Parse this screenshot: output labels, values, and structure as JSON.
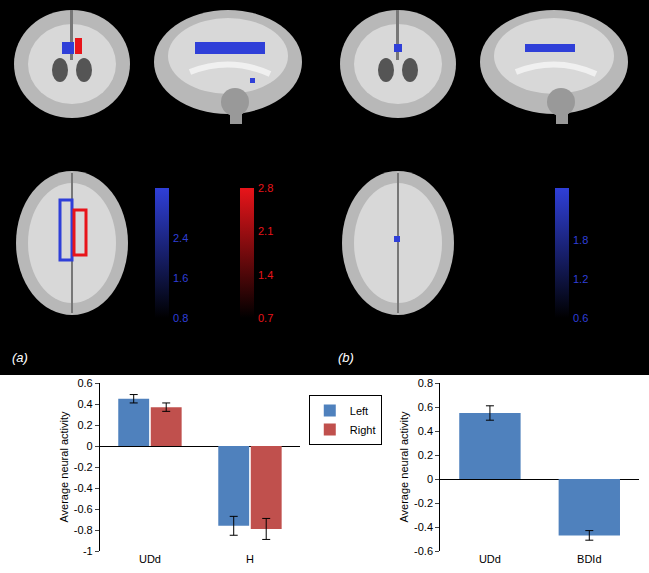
{
  "panels": [
    {
      "label": "(a)",
      "colorbars": [
        {
          "color": "#2f3fd8",
          "range": [
            0.8,
            3.4
          ],
          "ticks": [
            0.8,
            1.6,
            2.4
          ]
        },
        {
          "color": "#e8141a",
          "range": [
            0.7,
            2.8
          ],
          "ticks": [
            0.7,
            1.4,
            2.1,
            2.8
          ]
        }
      ]
    },
    {
      "label": "(b)",
      "colorbars": [
        {
          "color": "#2f3fd8",
          "range": [
            0.6,
            2.6
          ],
          "ticks": [
            0.6,
            1.2,
            1.8
          ]
        }
      ]
    }
  ],
  "chart_data": [
    {
      "type": "bar",
      "categories": [
        "UDd",
        "H"
      ],
      "series": [
        {
          "name": "Left",
          "color": "#4f81bd",
          "values": [
            0.45,
            -0.76
          ],
          "errors": [
            0.04,
            0.09
          ]
        },
        {
          "name": "Right",
          "color": "#c0504d",
          "values": [
            0.37,
            -0.79
          ],
          "errors": [
            0.04,
            0.1
          ]
        }
      ],
      "y_label": "Average neural activity",
      "ylim": [
        -1,
        0.6
      ],
      "yticks": [
        -1,
        -0.8,
        -0.6,
        -0.4,
        -0.2,
        0,
        0.2,
        0.4,
        0.6
      ],
      "grid": false,
      "legend": "right"
    },
    {
      "type": "bar",
      "categories": [
        "UDd",
        "BDId"
      ],
      "values": [
        0.55,
        -0.47
      ],
      "errors": [
        0.06,
        0.04
      ],
      "color": "#4f81bd",
      "y_label": "Average neural activity",
      "ylim": [
        -0.6,
        0.8
      ],
      "yticks": [
        -0.6,
        -0.4,
        -0.2,
        0,
        0.2,
        0.4,
        0.6,
        0.8
      ],
      "grid": false
    }
  ]
}
